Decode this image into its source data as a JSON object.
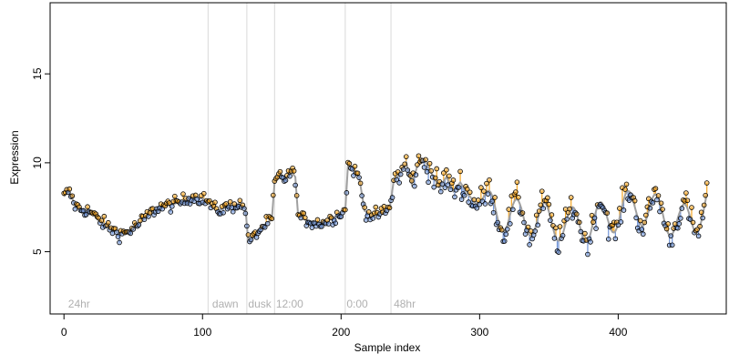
{
  "chart_data": {
    "type": "scatter",
    "title": "",
    "xlabel": "Sample index",
    "ylabel": "Expression",
    "xlim": [
      -10,
      478
    ],
    "ylim": [
      1.5,
      19
    ],
    "x_ticks": [
      0,
      100,
      200,
      300,
      400
    ],
    "y_ticks": [
      5,
      10,
      15
    ],
    "grid": false,
    "legend": "none",
    "colors": {
      "points_edge": "#000000",
      "fitted_line": "#a0a0a0",
      "residual_up": "#f5a623",
      "residual_down": "#6f93d6",
      "phase_lines": "#d9d9d9",
      "phase_text": "#b0b0b0"
    },
    "phase_boundaries": [
      104,
      132,
      152,
      203,
      236
    ],
    "phase_labels": [
      {
        "x": 3,
        "text": "24hr"
      },
      {
        "x": 107,
        "text": "dawn"
      },
      {
        "x": 133,
        "text": "dusk"
      },
      {
        "x": 153,
        "text": "12:00"
      },
      {
        "x": 204,
        "text": "0:00"
      },
      {
        "x": 238,
        "text": "48hr"
      }
    ],
    "anchors": [
      [
        0,
        8.1
      ],
      [
        3,
        8.4
      ],
      [
        5,
        8.2
      ],
      [
        8,
        7.6
      ],
      [
        12,
        7.4
      ],
      [
        18,
        7.3
      ],
      [
        25,
        6.8
      ],
      [
        32,
        6.4
      ],
      [
        40,
        6.0
      ],
      [
        46,
        6.1
      ],
      [
        53,
        6.5
      ],
      [
        60,
        7.0
      ],
      [
        68,
        7.5
      ],
      [
        76,
        7.6
      ],
      [
        84,
        7.8
      ],
      [
        92,
        8.1
      ],
      [
        100,
        8.0
      ],
      [
        104,
        7.8
      ],
      [
        110,
        7.3
      ],
      [
        118,
        7.5
      ],
      [
        126,
        7.7
      ],
      [
        131,
        7.4
      ],
      [
        133,
        5.6
      ],
      [
        137,
        5.8
      ],
      [
        141,
        6.2
      ],
      [
        146,
        6.6
      ],
      [
        150,
        6.8
      ],
      [
        152,
        8.9
      ],
      [
        156,
        9.3
      ],
      [
        160,
        9.1
      ],
      [
        164,
        9.5
      ],
      [
        167,
        9.2
      ],
      [
        169,
        7.0
      ],
      [
        174,
        6.8
      ],
      [
        182,
        6.6
      ],
      [
        190,
        6.7
      ],
      [
        196,
        7.0
      ],
      [
        200,
        7.2
      ],
      [
        203,
        7.3
      ],
      [
        205,
        9.9
      ],
      [
        209,
        9.6
      ],
      [
        213,
        9.2
      ],
      [
        217,
        7.3
      ],
      [
        223,
        7.0
      ],
      [
        230,
        7.2
      ],
      [
        235,
        7.4
      ],
      [
        238,
        9.0
      ],
      [
        243,
        9.4
      ],
      [
        247,
        10.0
      ],
      [
        251,
        8.8
      ],
      [
        255,
        9.8
      ],
      [
        260,
        10.2
      ],
      [
        266,
        9.3
      ],
      [
        271,
        8.6
      ],
      [
        276,
        9.2
      ],
      [
        281,
        8.4
      ],
      [
        286,
        8.9
      ],
      [
        292,
        8.2
      ],
      [
        300,
        8.0
      ],
      [
        310,
        7.4
      ],
      [
        320,
        7.0
      ],
      [
        335,
        6.9
      ],
      [
        350,
        6.7
      ],
      [
        365,
        6.5
      ],
      [
        380,
        6.6
      ],
      [
        395,
        7.0
      ],
      [
        405,
        7.4
      ],
      [
        415,
        7.5
      ],
      [
        425,
        7.3
      ],
      [
        435,
        7.0
      ],
      [
        445,
        6.6
      ],
      [
        455,
        6.9
      ],
      [
        464,
        7.8
      ]
    ]
  }
}
